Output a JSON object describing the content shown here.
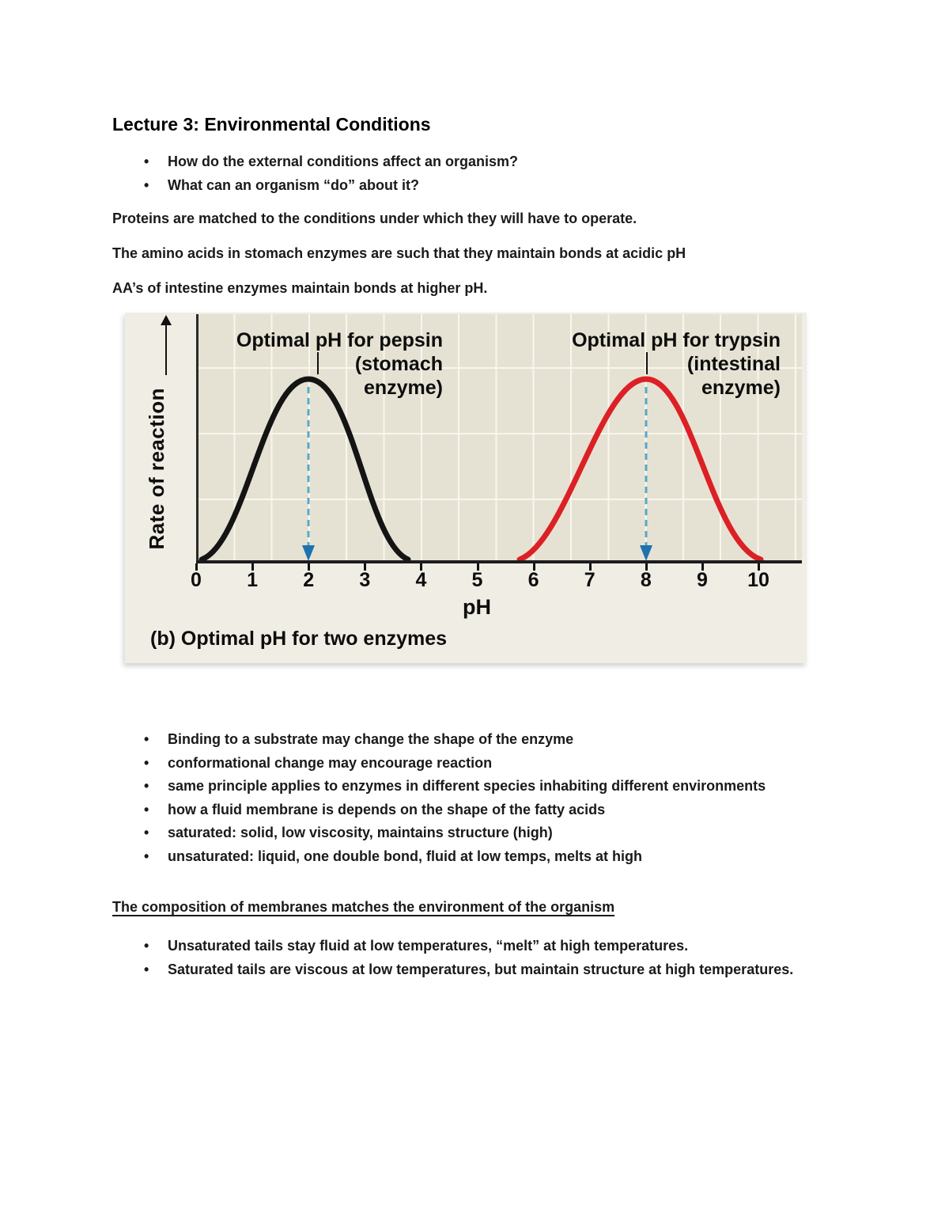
{
  "page": {
    "title": "Lecture 3: Environmental Conditions",
    "intro_bullets": [
      "How do the external conditions affect an organism?",
      "What can an organism “do” about it?"
    ],
    "paragraphs": [
      "Proteins are matched to the conditions under which they will have to operate.",
      "The amino acids in stomach enzymes are such that they maintain bonds at acidic pH",
      "AA’s of intestine enzymes maintain bonds at higher pH."
    ],
    "mid_bullets": [
      "Binding to a substrate may change the shape of the enzyme",
      "conformational change may encourage reaction",
      "same principle applies to enzymes in different species inhabiting different environments",
      "how a fluid membrane is depends on the shape of the fatty acids",
      "saturated: solid, low viscosity, maintains structure (high)",
      "unsaturated: liquid, one double bond, fluid at low temps, melts at high"
    ],
    "section_heading": "The composition of membranes matches the environment of the organism",
    "end_bullets": [
      "Unsaturated tails stay fluid at low temperatures, “melt” at high temperatures.",
      "Saturated tails are viscous at low temperatures, but maintain structure at high temperatures."
    ]
  },
  "figure": {
    "pepsin_label_lines": [
      "Optimal pH for pepsin",
      "(stomach",
      "enzyme)"
    ],
    "trypsin_label_lines": [
      "Optimal pH for trypsin",
      "(intestinal",
      "enzyme)"
    ],
    "y_axis_label": "Rate of reaction",
    "x_axis_label": "pH",
    "caption": "(b) Optimal pH for two enzymes",
    "x_ticks": [
      "0",
      "1",
      "2",
      "3",
      "4",
      "5",
      "6",
      "7",
      "8",
      "9",
      "10"
    ],
    "colors": {
      "pepsin_curve": "#141414",
      "trypsin_curve": "#dc2026",
      "dashed_arrow": "#58a8c8",
      "arrowhead": "#1f72b0",
      "plot_bg": "#e6e2d3",
      "figure_bg": "#f0ede4",
      "grid": "#f8f6ee"
    }
  },
  "chart_data": {
    "type": "line",
    "title": "(b) Optimal pH for two enzymes",
    "xlabel": "pH",
    "ylabel": "Rate of reaction",
    "xlim": [
      0,
      10.8
    ],
    "x_ticks": [
      0,
      1,
      2,
      3,
      4,
      5,
      6,
      7,
      8,
      9,
      10
    ],
    "grid": true,
    "series": [
      {
        "name": "Optimal pH for pepsin (stomach enzyme)",
        "color": "#141414",
        "optimal_pH": 2,
        "points_x": [
          0.1,
          0.6,
          1.0,
          1.5,
          2.0,
          2.5,
          3.0,
          3.4,
          3.75
        ],
        "points_y": [
          0,
          0.12,
          0.42,
          0.88,
          1.0,
          0.88,
          0.42,
          0.12,
          0
        ]
      },
      {
        "name": "Optimal pH for trypsin (intestinal enzyme)",
        "color": "#dc2026",
        "optimal_pH": 8,
        "points_x": [
          5.75,
          6.3,
          7.0,
          7.5,
          8.0,
          8.5,
          9.0,
          9.6,
          10.05
        ],
        "points_y": [
          0,
          0.15,
          0.55,
          0.9,
          1.0,
          0.88,
          0.5,
          0.1,
          0
        ]
      }
    ],
    "annotations": [
      {
        "type": "dashed-arrow-down",
        "x": 2,
        "label": "optimal pH of pepsin"
      },
      {
        "type": "dashed-arrow-down",
        "x": 8,
        "label": "optimal pH of trypsin"
      }
    ]
  }
}
